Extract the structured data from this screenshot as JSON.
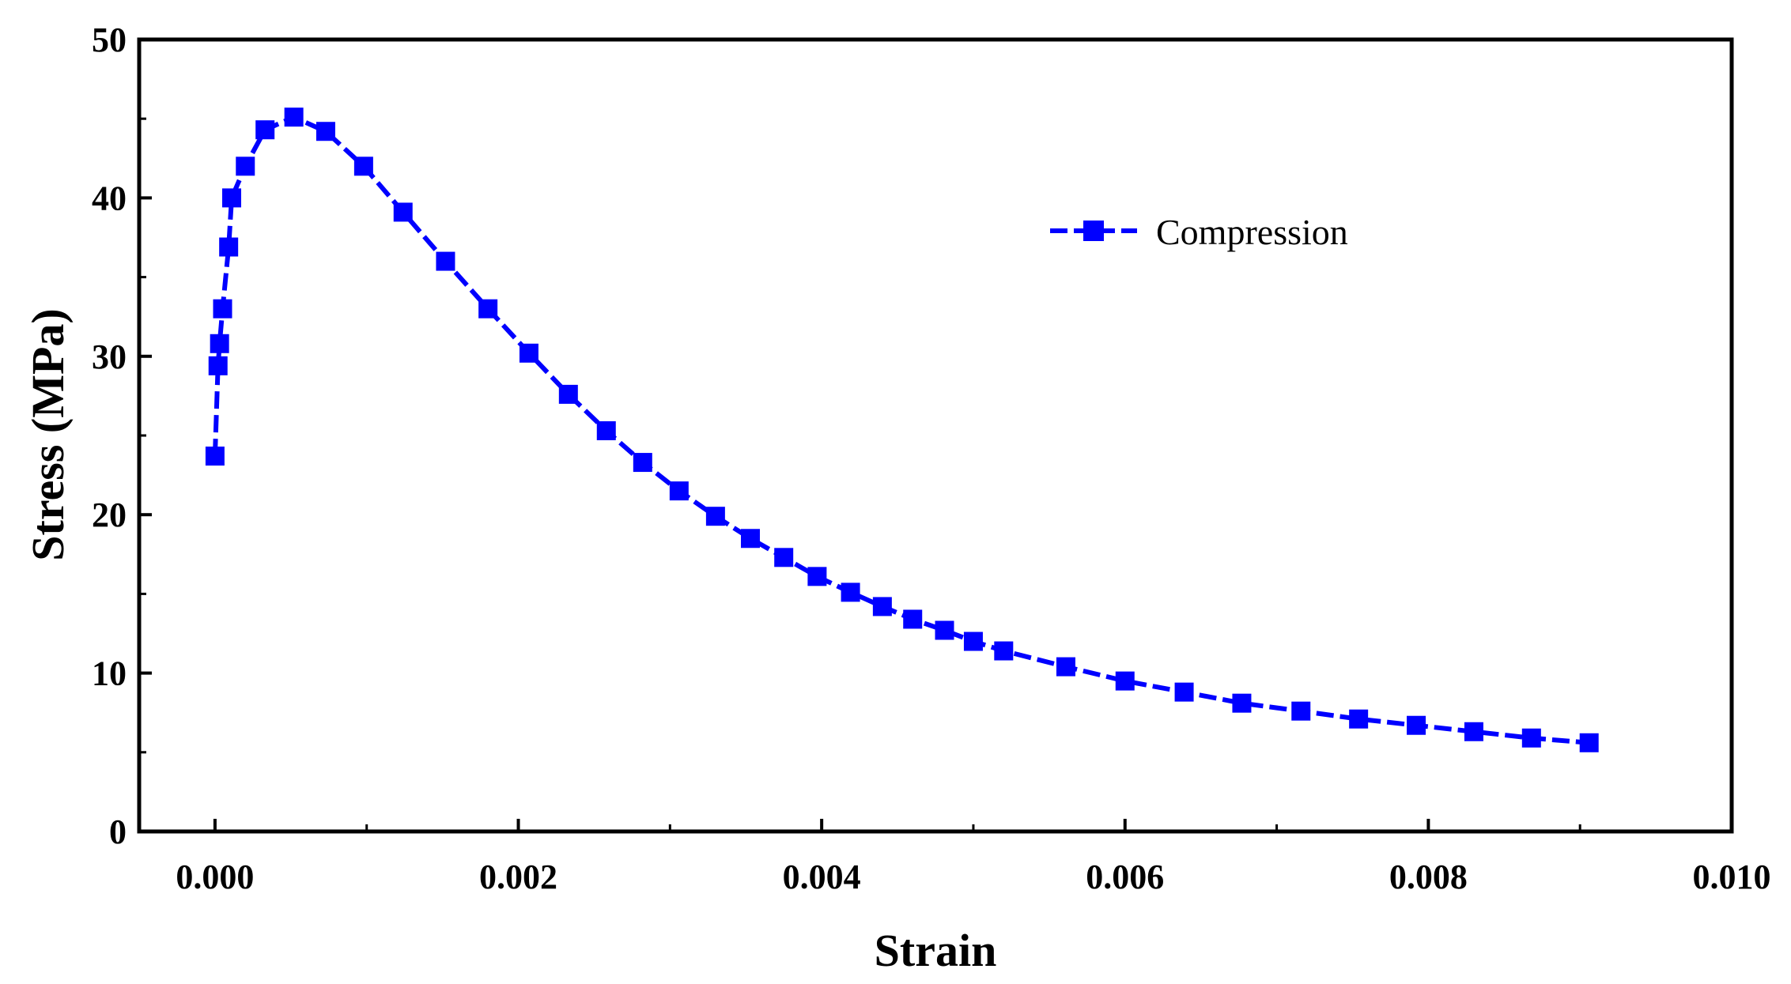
{
  "chart_data": {
    "type": "line",
    "title": "",
    "xlabel": "Strain",
    "ylabel": "Stress (MPa)",
    "xlim": [
      -0.0005,
      0.01
    ],
    "ylim": [
      0,
      50
    ],
    "x_ticks": [
      0.0,
      0.002,
      0.004,
      0.006,
      0.008,
      0.01
    ],
    "x_tick_labels": [
      "0.000",
      "0.002",
      "0.004",
      "0.006",
      "0.008",
      "0.010"
    ],
    "y_ticks": [
      0,
      10,
      20,
      30,
      40,
      50
    ],
    "y_tick_labels": [
      "0",
      "10",
      "20",
      "30",
      "40",
      "50"
    ],
    "grid": false,
    "legend_position": "top-right",
    "colors": {
      "series": "#0000FF",
      "axis": "#000000"
    },
    "series": [
      {
        "name": "Compression",
        "marker": "square",
        "x": [
          0.0,
          2e-05,
          3e-05,
          5e-05,
          9e-05,
          0.00011,
          0.0002,
          0.00033,
          0.00052,
          0.00073,
          0.00098,
          0.00124,
          0.00152,
          0.0018,
          0.00207,
          0.00233,
          0.00258,
          0.00282,
          0.00306,
          0.0033,
          0.00353,
          0.00375,
          0.00397,
          0.00419,
          0.0044,
          0.0046,
          0.00481,
          0.005,
          0.0052,
          0.00561,
          0.006,
          0.00639,
          0.00677,
          0.00716,
          0.00754,
          0.00792,
          0.0083,
          0.00868,
          0.00906
        ],
        "y": [
          23.7,
          29.4,
          30.8,
          33.0,
          36.9,
          40.0,
          42.0,
          44.3,
          45.1,
          44.2,
          42.0,
          39.1,
          36.0,
          33.0,
          30.2,
          27.6,
          25.3,
          23.3,
          21.5,
          19.9,
          18.5,
          17.3,
          16.1,
          15.1,
          14.2,
          13.4,
          12.7,
          12.0,
          11.4,
          10.4,
          9.5,
          8.8,
          8.1,
          7.6,
          7.1,
          6.7,
          6.3,
          5.9,
          5.6
        ]
      }
    ]
  }
}
